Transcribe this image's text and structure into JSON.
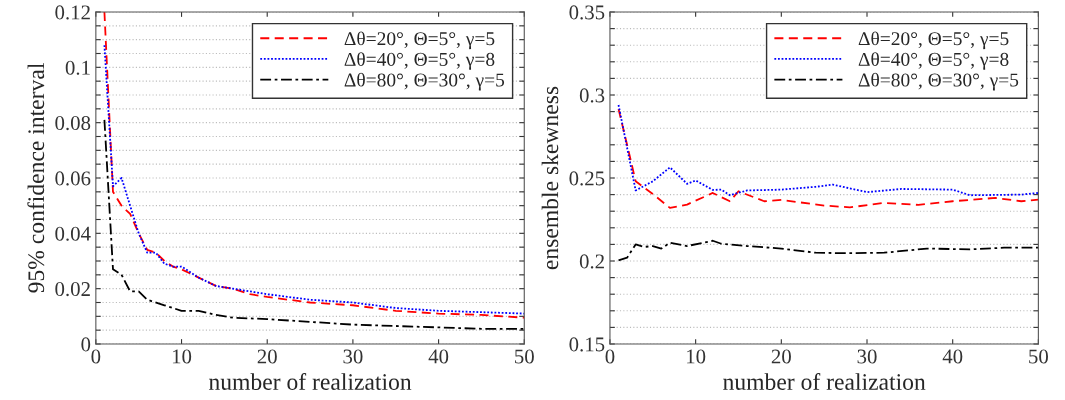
{
  "chart_data": [
    {
      "type": "line",
      "xlabel": "number of realization",
      "ylabel": "95% confidence interval",
      "xlim": [
        0,
        50
      ],
      "xticks": [
        0,
        10,
        20,
        30,
        40,
        50
      ],
      "ylim": [
        0,
        0.12
      ],
      "yticks": [
        0,
        {
          "value": 0.005,
          "label": null
        },
        {
          "value": 0.01,
          "label": null
        },
        {
          "value": 0.015,
          "label": null
        },
        0.02,
        {
          "value": 0.025,
          "label": null
        },
        {
          "value": 0.03,
          "label": null
        },
        {
          "value": 0.035,
          "label": null
        },
        0.04,
        {
          "value": 0.045,
          "label": null
        },
        {
          "value": 0.05,
          "label": null
        },
        {
          "value": 0.055,
          "label": null
        },
        0.06,
        {
          "value": 0.065,
          "label": null
        },
        {
          "value": 0.07,
          "label": null
        },
        {
          "value": 0.075,
          "label": null
        },
        0.08,
        {
          "value": 0.085,
          "label": null
        },
        {
          "value": 0.09,
          "label": null
        },
        {
          "value": 0.095,
          "label": null
        },
        0.1,
        {
          "value": 0.105,
          "label": null
        },
        {
          "value": 0.11,
          "label": null
        },
        {
          "value": 0.115,
          "label": null
        },
        0.12
      ],
      "grid": "y",
      "legend": "top right",
      "marker": "none",
      "x": [
        1,
        2,
        3,
        4,
        5,
        6,
        7,
        8,
        9,
        10,
        12,
        14,
        16,
        18,
        20,
        25,
        30,
        35,
        40,
        45,
        50
      ],
      "series": [
        {
          "name": "Δθ=20°, Θ=5°, γ=5",
          "color": "#ff0000",
          "line_style": "dashed",
          "values": [
            0.12,
            0.055,
            0.05,
            0.047,
            0.04,
            0.034,
            0.033,
            0.03,
            0.028,
            0.027,
            0.024,
            0.021,
            0.02,
            0.018,
            0.017,
            0.015,
            0.014,
            0.012,
            0.011,
            0.0105,
            0.0095
          ]
        },
        {
          "name": "Δθ=40°, Θ=5°, γ=8",
          "color": "#0000ff",
          "line_style": "dotted",
          "values": [
            0.108,
            0.057,
            0.06,
            0.05,
            0.04,
            0.033,
            0.033,
            0.029,
            0.028,
            0.028,
            0.024,
            0.021,
            0.02,
            0.019,
            0.018,
            0.016,
            0.015,
            0.013,
            0.012,
            0.0115,
            0.011
          ]
        },
        {
          "name": "Δθ=80°, Θ=30°, γ=5",
          "color": "#000000",
          "line_style": "dashdot",
          "x": [
            1,
            2,
            3,
            4,
            5,
            6,
            8,
            10,
            12,
            14,
            16,
            20,
            25,
            30,
            35,
            40,
            45,
            50
          ],
          "values": [
            0.081,
            0.027,
            0.025,
            0.019,
            0.019,
            0.016,
            0.014,
            0.012,
            0.012,
            0.0105,
            0.0095,
            0.009,
            0.008,
            0.007,
            0.0065,
            0.006,
            0.0055,
            0.0055
          ]
        }
      ]
    },
    {
      "type": "line",
      "xlabel": "number of realization",
      "ylabel": "ensemble skewness",
      "xlim": [
        0,
        50
      ],
      "xticks": [
        0,
        10,
        20,
        30,
        40,
        50
      ],
      "ylim": [
        0.15,
        0.35
      ],
      "yticks": [
        0.15,
        {
          "value": 0.16,
          "label": null
        },
        {
          "value": 0.17,
          "label": null
        },
        {
          "value": 0.18,
          "label": null
        },
        {
          "value": 0.19,
          "label": null
        },
        0.2,
        {
          "value": 0.21,
          "label": null
        },
        {
          "value": 0.22,
          "label": null
        },
        {
          "value": 0.23,
          "label": null
        },
        {
          "value": 0.24,
          "label": null
        },
        0.25,
        {
          "value": 0.26,
          "label": null
        },
        {
          "value": 0.27,
          "label": null
        },
        {
          "value": 0.28,
          "label": null
        },
        {
          "value": 0.29,
          "label": null
        },
        0.3,
        {
          "value": 0.31,
          "label": null
        },
        {
          "value": 0.32,
          "label": null
        },
        {
          "value": 0.33,
          "label": null
        },
        {
          "value": 0.34,
          "label": null
        },
        0.35
      ],
      "grid": "y",
      "legend": "top right",
      "marker": "none",
      "series": [
        {
          "name": "Δθ=20°, Θ=5°, γ=5",
          "color": "#ff0000",
          "line_style": "dashed",
          "x": [
            1,
            2,
            3,
            5,
            7,
            9,
            12,
            14,
            15,
            18,
            20,
            25,
            28,
            32,
            36,
            40,
            45,
            48,
            50
          ],
          "values": [
            0.2915,
            0.27,
            0.248,
            0.2404,
            0.232,
            0.234,
            0.241,
            0.236,
            0.242,
            0.236,
            0.2368,
            0.2334,
            0.2323,
            0.235,
            0.2338,
            0.236,
            0.238,
            0.236,
            0.237
          ]
        },
        {
          "name": "Δθ=40°, Θ=5°, γ=8",
          "color": "#0000ff",
          "line_style": "dotted",
          "x": [
            1,
            3,
            5,
            7,
            9,
            10,
            12,
            13,
            14,
            16,
            20,
            24,
            26,
            30,
            34,
            40,
            42,
            48,
            50
          ],
          "values": [
            0.294,
            0.2425,
            0.248,
            0.2564,
            0.2465,
            0.2485,
            0.2428,
            0.243,
            0.2396,
            0.2425,
            0.243,
            0.2447,
            0.246,
            0.2415,
            0.2434,
            0.243,
            0.2396,
            0.24,
            0.241
          ]
        },
        {
          "name": "Δθ=80°, Θ=30°, γ=5",
          "color": "#000000",
          "line_style": "dashdot",
          "x": [
            1,
            2,
            3,
            4,
            5,
            6,
            7,
            9,
            12,
            13,
            16,
            20,
            24,
            27,
            32,
            37,
            42,
            46,
            50
          ],
          "values": [
            0.2004,
            0.202,
            0.21,
            0.2085,
            0.209,
            0.2075,
            0.211,
            0.209,
            0.2122,
            0.2104,
            0.209,
            0.2075,
            0.205,
            0.2047,
            0.205,
            0.2075,
            0.207,
            0.208,
            0.208
          ]
        }
      ]
    }
  ]
}
